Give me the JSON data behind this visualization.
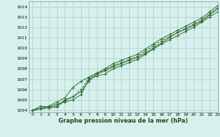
{
  "xlabel": "Graphe pression niveau de la mer (hPa)",
  "xlim": [
    -0.5,
    23
  ],
  "ylim": [
    1003.8,
    1014.5
  ],
  "yticks": [
    1004,
    1005,
    1006,
    1007,
    1008,
    1009,
    1010,
    1011,
    1012,
    1013,
    1014
  ],
  "xticks": [
    0,
    1,
    2,
    3,
    4,
    5,
    6,
    7,
    8,
    9,
    10,
    11,
    12,
    13,
    14,
    15,
    16,
    17,
    18,
    19,
    20,
    21,
    22,
    23
  ],
  "bg_color": "#d6f0ee",
  "grid_color": "#b0c8c4",
  "line_color": "#2d6a2d",
  "series": [
    [
      1004.0,
      1004.2,
      1004.3,
      1004.4,
      1005.0,
      1005.3,
      1005.8,
      1006.8,
      1007.5,
      1007.8,
      1008.2,
      1008.5,
      1008.8,
      1009.1,
      1009.5,
      1010.0,
      1010.5,
      1011.0,
      1011.5,
      1011.8,
      1012.2,
      1012.6,
      1013.2,
      1013.8
    ],
    [
      1004.0,
      1004.4,
      1004.3,
      1004.6,
      1004.8,
      1005.0,
      1005.5,
      1007.0,
      1007.3,
      1007.5,
      1008.0,
      1008.3,
      1008.6,
      1008.9,
      1009.4,
      1009.9,
      1010.4,
      1010.8,
      1011.2,
      1011.6,
      1012.0,
      1012.5,
      1013.0,
      1013.5
    ],
    [
      1004.0,
      1004.1,
      1004.2,
      1004.3,
      1004.9,
      1005.3,
      1006.0,
      1007.1,
      1007.5,
      1007.9,
      1008.3,
      1008.6,
      1008.9,
      1009.2,
      1009.7,
      1010.2,
      1010.7,
      1011.1,
      1011.5,
      1011.9,
      1012.3,
      1012.7,
      1013.3,
      1013.9
    ],
    [
      1004.0,
      1004.2,
      1004.4,
      1004.8,
      1005.2,
      1006.2,
      1006.8,
      1007.2,
      1007.6,
      1008.0,
      1008.5,
      1008.8,
      1009.1,
      1009.4,
      1009.9,
      1010.4,
      1010.9,
      1011.3,
      1011.7,
      1012.1,
      1012.5,
      1012.9,
      1013.5,
      1014.1
    ]
  ],
  "linestyles": [
    "-",
    "-",
    "--",
    "-"
  ]
}
